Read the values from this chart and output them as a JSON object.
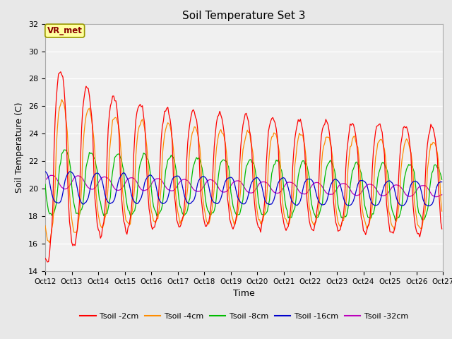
{
  "title": "Soil Temperature Set 3",
  "xlabel": "Time",
  "ylabel": "Soil Temperature (C)",
  "ylim": [
    14,
    32
  ],
  "yticks": [
    14,
    16,
    18,
    20,
    22,
    24,
    26,
    28,
    30,
    32
  ],
  "xtick_labels": [
    "Oct 12",
    "Oct 13",
    "Oct 14",
    "Oct 15",
    "Oct 16",
    "Oct 17",
    "Oct 18",
    "Oct 19",
    "Oct 20",
    "Oct 21",
    "Oct 22",
    "Oct 23",
    "Oct 24",
    "Oct 25",
    "Oct 26",
    "Oct 27"
  ],
  "colors": {
    "Tsoil -2cm": "#FF0000",
    "Tsoil -4cm": "#FF8C00",
    "Tsoil -8cm": "#00BB00",
    "Tsoil -16cm": "#0000CC",
    "Tsoil -32cm": "#BB00BB"
  },
  "annotation_text": "VR_met",
  "annotation_bgcolor": "#FFFFA0",
  "annotation_edgecolor": "#999900",
  "annotation_textcolor": "#880000",
  "fig_facecolor": "#E8E8E8",
  "plot_facecolor": "#F0F0F0",
  "grid_color": "#FFFFFF"
}
